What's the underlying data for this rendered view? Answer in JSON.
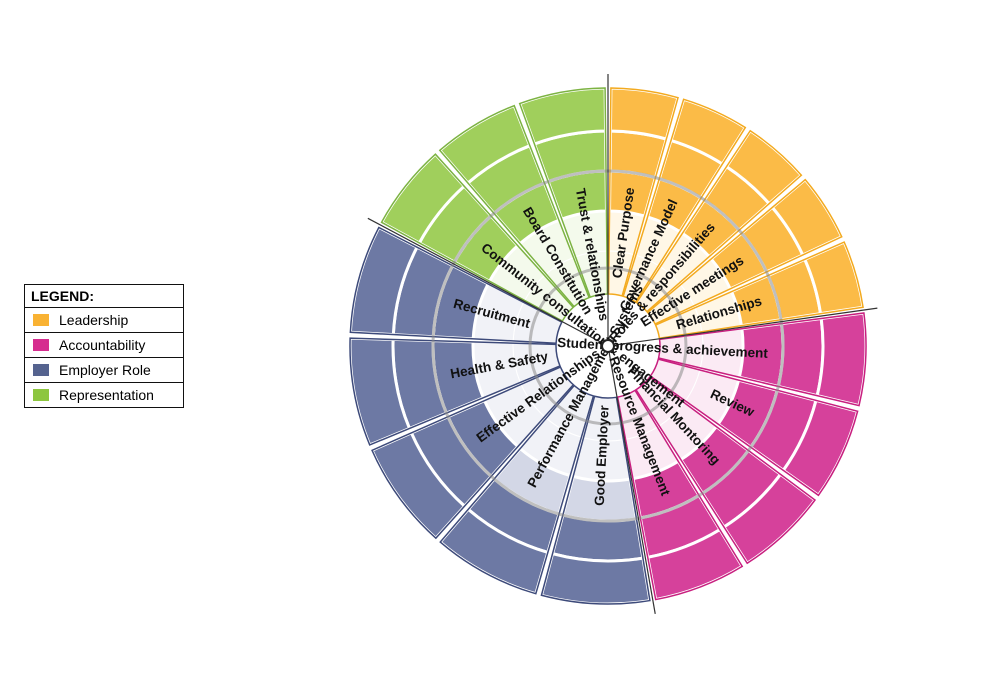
{
  "legend": {
    "title": "LEGEND:",
    "items": [
      {
        "label": "Leadership",
        "color": "#f9b233"
      },
      {
        "label": "Accountability",
        "color": "#d62d8f"
      },
      {
        "label": "Employer Role",
        "color": "#55638f"
      },
      {
        "label": "Representation",
        "color": "#8dc63f"
      }
    ]
  },
  "wheel": {
    "groups": [
      {
        "name": "Leadership",
        "dark": "#fbbb47",
        "light": "#fde9c3",
        "pale": "#fff7e6",
        "edge": "#f3aa1f",
        "segments": [
          {
            "label": "Clear Purpose",
            "level": 2
          },
          {
            "label": "Governance Model",
            "level": 2
          },
          {
            "label": "Roles & responsibilities",
            "level": 2
          },
          {
            "label": "Effective meetings",
            "level": 2
          },
          {
            "label": "Relationships",
            "level": 2
          }
        ]
      },
      {
        "name": "Accountability",
        "dark": "#d6419b",
        "light": "#f3c6e0",
        "pale": "#fbeaf4",
        "edge": "#c81f7f",
        "segments": [
          {
            "label": "Student progress & achievement",
            "level": 3
          },
          {
            "label": "Review",
            "level": 3
          },
          {
            "label": "Financial Montoring",
            "level": 2
          },
          {
            "label": "Resource Management",
            "level": 2
          }
        ]
      },
      {
        "name": "Employer Role",
        "dark": "#6d79a4",
        "light": "#d3d7e6",
        "pale": "#f1f2f7",
        "edge": "#3d4a7a",
        "segments": [
          {
            "label": "Good Employer",
            "level": 1
          },
          {
            "label": "Performance Management Systems",
            "level": 1
          },
          {
            "label": "Effective Relationships",
            "level": 2
          },
          {
            "label": "Health & Safety",
            "level": 2
          },
          {
            "label": "Recruitment",
            "level": 2
          }
        ]
      },
      {
        "name": "Representation",
        "dark": "#a0cf5c",
        "light": "#e4f1d2",
        "pale": "#f4faec",
        "edge": "#7cb342",
        "segments": [
          {
            "label": "Community consultation & engagement",
            "level": 2
          },
          {
            "label": "Board Constitution",
            "level": 2
          },
          {
            "label": "Trust & relationships",
            "level": 2
          }
        ]
      }
    ]
  }
}
